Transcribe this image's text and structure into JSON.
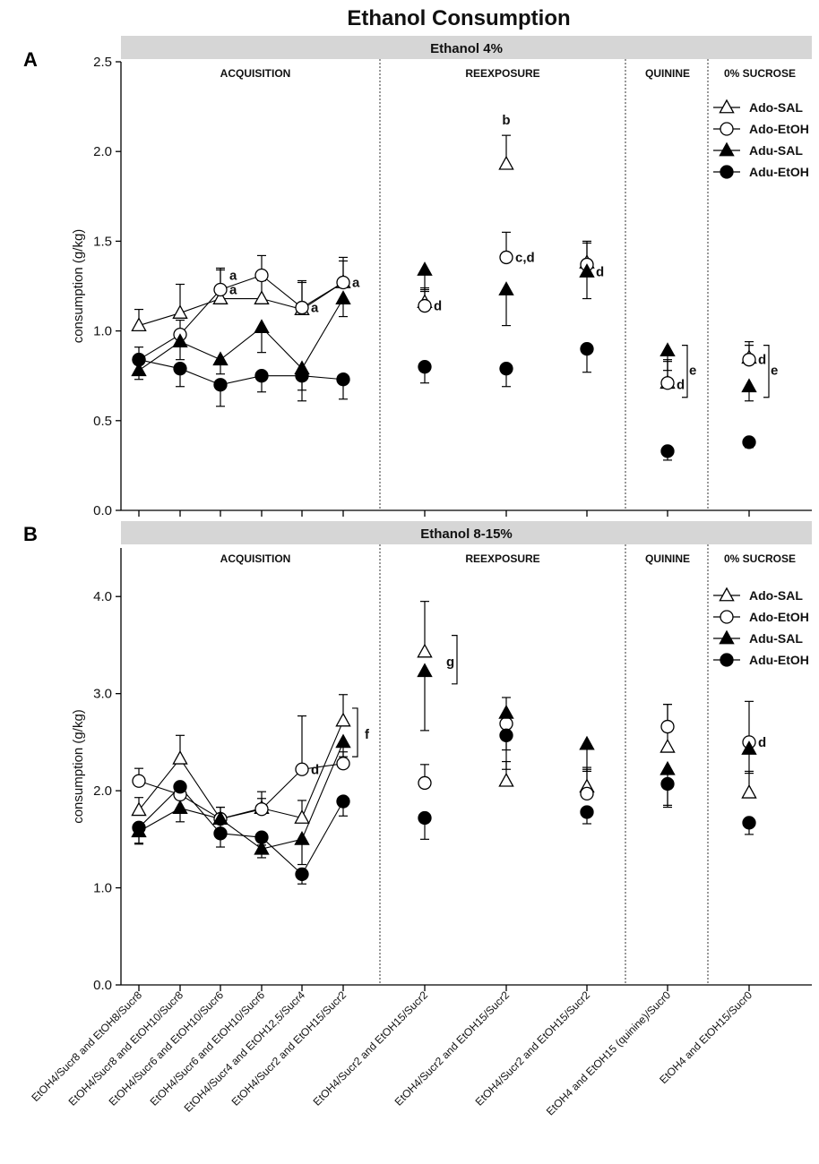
{
  "figure": {
    "title": "Ethanol Consumption",
    "x_categories": [
      "EtOH4/Sucr8 and EtOH8/Sucr8",
      "EtOH4/Sucr8 and EtOH10/Sucr8",
      "EtOH4/Sucr6 and EtOH10/Sucr6",
      "EtOH4/Sucr6 and EtOH10/Sucr6",
      "EtOH4/Sucr4 and EtOH12,5/Sucr4",
      "EtOH4/Sucr2 and EtOH15/Sucr2",
      "EtOH4/Sucr2 and EtOH15/Sucr2",
      "EtOH4/Sucr2 and EtOH15/Sucr2",
      "EtOH4/Sucr2 and EtOH15/Sucr2",
      "EtOH4 and EtOH15 (quinine)/Sucr0",
      "EtOH4 and EtOH15/Sucr0"
    ],
    "phases": [
      "ACQUISITION",
      "REEXPOSURE",
      "QUININE",
      "0% SUCROSE"
    ],
    "legend": [
      "Ado-SAL",
      "Ado-EtOH",
      "Adu-SAL",
      "Adu-EtOH"
    ]
  },
  "chart_data": [
    {
      "type": "scatter",
      "panel_letter": "A",
      "title": "Ethanol 4%",
      "ylabel": "consumption (g/kg)",
      "ylim": [
        0,
        2.5
      ],
      "yticks": [
        "0.0",
        "0.5",
        "1.0",
        "1.5",
        "2.0",
        "2.5"
      ],
      "series": [
        {
          "name": "Ado-SAL",
          "values": [
            1.03,
            1.1,
            1.18,
            1.18,
            1.12,
            1.27,
            1.16,
            1.93,
            1.38,
            0.71,
            0.85
          ],
          "errors": [
            0.09,
            0.16,
            0.16,
            0.1,
            0.15,
            0.14,
            0.08,
            0.16,
            0.12,
            0.13,
            0.09
          ]
        },
        {
          "name": "Ado-EtOH",
          "values": [
            0.84,
            0.98,
            1.23,
            1.31,
            1.13,
            1.27,
            1.14,
            1.41,
            1.37,
            0.71,
            0.84
          ],
          "errors": [
            0.07,
            0.08,
            0.12,
            0.11,
            0.15,
            0.12,
            0.08,
            0.14,
            0.12,
            0.12,
            0.08
          ]
        },
        {
          "name": "Adu-SAL",
          "values": [
            0.78,
            0.94,
            0.84,
            1.02,
            0.79,
            1.18,
            1.34,
            1.23,
            1.33,
            0.89,
            0.69
          ],
          "errors": [
            0.05,
            0.1,
            0.08,
            0.14,
            0.12,
            0.1,
            0.11,
            0.2,
            0.15,
            0.11,
            0.08
          ]
        },
        {
          "name": "Adu-EtOH",
          "values": [
            0.84,
            0.79,
            0.7,
            0.75,
            0.75,
            0.73,
            0.8,
            0.79,
            0.9,
            0.33,
            0.38
          ],
          "errors": [
            0.07,
            0.1,
            0.12,
            0.09,
            0.14,
            0.11,
            0.09,
            0.1,
            0.13,
            0.05,
            0.03
          ]
        }
      ],
      "annotations": [
        {
          "text": "a",
          "category": 3,
          "y": 1.31
        },
        {
          "text": "a",
          "category": 3,
          "y": 1.23
        },
        {
          "text": "a",
          "category": 5,
          "y": 1.13
        },
        {
          "text": "a",
          "category": 6,
          "y": 1.27
        },
        {
          "text": "d",
          "category": 7,
          "y": 1.14
        },
        {
          "text": "b",
          "category": 8,
          "y": 2.13
        },
        {
          "text": "c,d",
          "category": 8,
          "y": 1.41
        },
        {
          "text": "d",
          "category": 9,
          "y": 1.33
        },
        {
          "text": "d",
          "category": 10,
          "y": 0.7
        },
        {
          "text": "e",
          "category": 10,
          "y": 0.78
        },
        {
          "text": "d",
          "category": 11,
          "y": 0.84
        },
        {
          "text": "e",
          "category": 11,
          "y": 0.78
        }
      ]
    },
    {
      "type": "scatter",
      "panel_letter": "B",
      "title": "Ethanol 8-15%",
      "ylabel": "consumption (g/kg)",
      "ylim": [
        0,
        4.5
      ],
      "yticks": [
        "0.0",
        "1.0",
        "2.0",
        "3.0",
        "4.0"
      ],
      "series": [
        {
          "name": "Ado-SAL",
          "values": [
            1.8,
            2.33,
            1.71,
            1.82,
            1.72,
            2.72,
            3.43,
            2.1,
            2.04,
            2.45,
            1.98
          ],
          "errors": [
            0.13,
            0.24,
            0.12,
            0.1,
            0.18,
            0.27,
            0.52,
            0.2,
            0.2,
            0.44,
            0.22
          ]
        },
        {
          "name": "Ado-EtOH",
          "values": [
            2.1,
            1.96,
            1.71,
            1.81,
            2.22,
            2.28,
            2.08,
            2.69,
            1.97,
            2.66,
            2.5
          ],
          "errors": [
            0.13,
            0.12,
            0.12,
            0.18,
            0.55,
            0.12,
            0.19,
            0.27,
            0.25,
            0.23,
            0.42
          ]
        },
        {
          "name": "Adu-SAL",
          "values": [
            1.58,
            1.82,
            1.71,
            1.4,
            1.5,
            2.5,
            3.23,
            2.8,
            2.48,
            2.22,
            2.43
          ],
          "errors": [
            0.13,
            0.14,
            0.13,
            0.09,
            0.26,
            0.15,
            0.61,
            0.38,
            0.28,
            0.39,
            0.25
          ]
        },
        {
          "name": "Adu-EtOH",
          "values": [
            1.62,
            2.04,
            1.56,
            1.52,
            1.14,
            1.89,
            1.72,
            2.57,
            1.78,
            2.07,
            1.67
          ],
          "errors": [
            0.16,
            0.07,
            0.14,
            0.08,
            0.1,
            0.15,
            0.22,
            0.35,
            0.12,
            0.22,
            0.12
          ]
        }
      ],
      "annotations": [
        {
          "text": "d",
          "category": 5,
          "y": 2.22
        },
        {
          "text": "f",
          "category": 6,
          "y": 2.58
        },
        {
          "text": "g",
          "category": 7,
          "y": 3.33
        },
        {
          "text": "d",
          "category": 11,
          "y": 2.5
        }
      ]
    }
  ]
}
